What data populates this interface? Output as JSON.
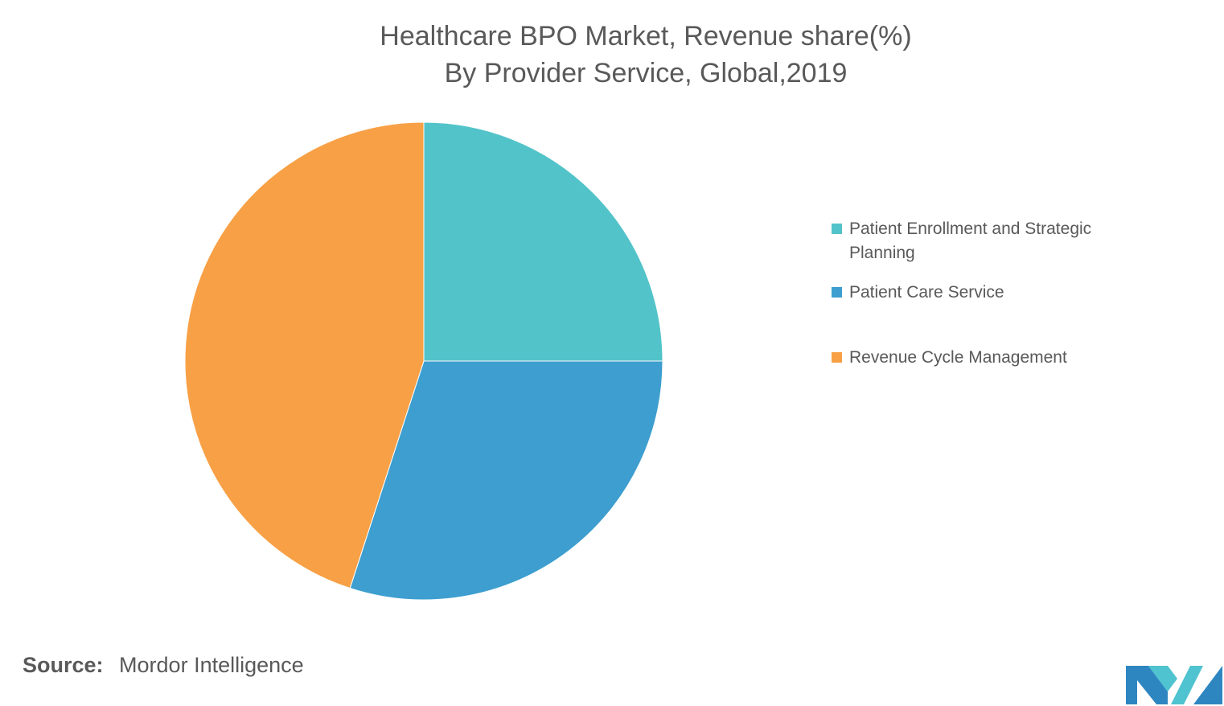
{
  "chart_data": {
    "type": "pie",
    "title": "Healthcare BPO Market, Revenue share(%)",
    "subtitle": "By Provider Service, Global,2019",
    "legend_position": "right",
    "slices": [
      {
        "label": "Patient Enrollment and Strategic Planning",
        "value": 25,
        "color": "#52C3C9"
      },
      {
        "label": "Patient Care Service",
        "value": 30,
        "color": "#3D9ECF"
      },
      {
        "label": "Revenue Cycle Management",
        "value": 45,
        "color": "#F8A046"
      }
    ]
  },
  "source": {
    "label": "Source:",
    "value": "Mordor Intelligence"
  },
  "logo": {
    "icon": "mordor-intelligence-logo",
    "colors": [
      "#2E86C1",
      "#4FC3CF"
    ]
  }
}
